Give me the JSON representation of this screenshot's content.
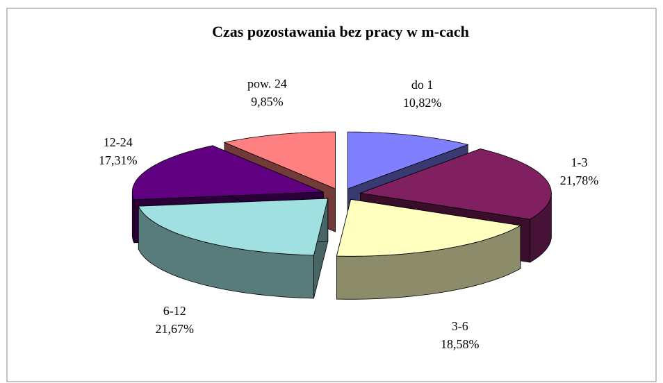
{
  "chart_data": {
    "type": "pie3d",
    "title": "Czas pozostawania bez pracy w m-cach",
    "categories": [
      "do 1",
      "1-3",
      "3-6",
      "6-12",
      "12-24",
      "pow. 24"
    ],
    "values": [
      10.82,
      21.78,
      18.58,
      21.67,
      17.31,
      9.85
    ],
    "value_labels": [
      "10,82%",
      "21,78%",
      "18,58%",
      "21,67%",
      "17,31%",
      "9,85%"
    ],
    "colors": [
      "#8080ff",
      "#802060",
      "#ffffc0",
      "#a0e0e0",
      "#600080",
      "#ff8080"
    ]
  }
}
